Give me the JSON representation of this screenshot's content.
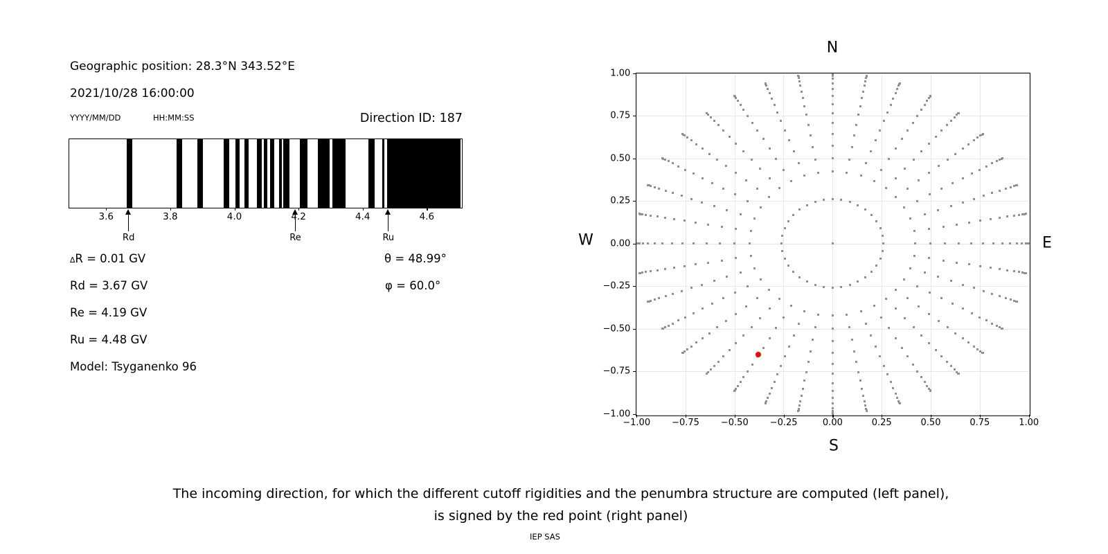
{
  "header": {
    "geo_position": "Geographic position: 28.3°N 343.52°E",
    "datetime": "2021/10/28 16:00:00",
    "date_format_label": "YYYY/MM/DD",
    "time_format_label": "HH:MM:SS",
    "direction_id": "Direction ID: 187"
  },
  "values": {
    "delta_symbol": "∆",
    "delta_r_rest": "R = 0.01 GV",
    "rd": "Rd = 3.67 GV",
    "re": "Re = 4.19 GV",
    "ru": "Ru = 4.48 GV",
    "model": "Model: Tsyganenko 96",
    "theta": "θ = 48.99°",
    "phi": "φ = 60.0°"
  },
  "caption": {
    "line1": "The incoming direction, for which the different cutoff rigidities and the penumbra structure are computed (left panel),",
    "line2": "is signed by the red point (right panel)",
    "credit": "IEP SAS"
  },
  "chart_data": [
    {
      "type": "bar",
      "subtype": "penumbra-barcode",
      "title": "",
      "xlabel": "",
      "ylabel": "",
      "xlim": [
        3.485,
        4.705
      ],
      "x_ticks": [
        3.6,
        3.8,
        4.0,
        4.2,
        4.4,
        4.6
      ],
      "x_tick_labels": [
        "3.6",
        "3.8",
        "4.0",
        "4.2",
        "4.4",
        "4.6"
      ],
      "bar_color": "#000000",
      "black_bands_gv": [
        [
          3.665,
          3.681
        ],
        [
          3.819,
          3.836
        ],
        [
          3.884,
          3.901
        ],
        [
          3.967,
          3.984
        ],
        [
          4.004,
          4.017
        ],
        [
          4.032,
          4.044
        ],
        [
          4.07,
          4.086
        ],
        [
          4.091,
          4.103
        ],
        [
          4.112,
          4.124
        ],
        [
          4.139,
          4.147
        ],
        [
          4.152,
          4.172
        ],
        [
          4.205,
          4.228
        ],
        [
          4.259,
          4.297
        ],
        [
          4.305,
          4.347
        ],
        [
          4.417,
          4.438
        ],
        [
          4.46,
          4.468
        ],
        [
          4.477,
          4.705
        ]
      ],
      "arrow_markers": [
        {
          "label": "Rd",
          "gv": 3.67
        },
        {
          "label": "Re",
          "gv": 4.19
        },
        {
          "label": "Ru",
          "gv": 4.48
        }
      ]
    },
    {
      "type": "scatter",
      "subtype": "incoming-direction-map",
      "xlim": [
        -1.0,
        1.0
      ],
      "ylim": [
        -1.0,
        1.0
      ],
      "grid": true,
      "tick_values": [
        -1.0,
        -0.75,
        -0.5,
        -0.25,
        0.0,
        0.25,
        0.5,
        0.75,
        1.0
      ],
      "tick_labels": [
        "−1.00",
        "−0.75",
        "−0.50",
        "−0.25",
        "0.00",
        "0.25",
        "0.50",
        "0.75",
        "1.00"
      ],
      "cardinals": {
        "top": "N",
        "bottom": "S",
        "left": "W",
        "right": "E"
      },
      "gray_direction_grid": {
        "description": "grid of incoming directions: radius = sin(zenith), azimuth every 10 degrees",
        "dot_color": "#909090",
        "azimuth_count": 36,
        "azimuth_step_deg": 10,
        "inner_ring_radius": 0.259,
        "center_dot": true,
        "spoke_radii": [
          0.423,
          0.5,
          0.574,
          0.643,
          0.707,
          0.766,
          0.819,
          0.866,
          0.906,
          0.94,
          0.966,
          0.985,
          0.996,
          1.0
        ]
      },
      "red_point": {
        "x": -0.377,
        "y": -0.654,
        "azimuth_deg": 210,
        "radius": 0.755,
        "color": "#ff0000"
      }
    }
  ]
}
